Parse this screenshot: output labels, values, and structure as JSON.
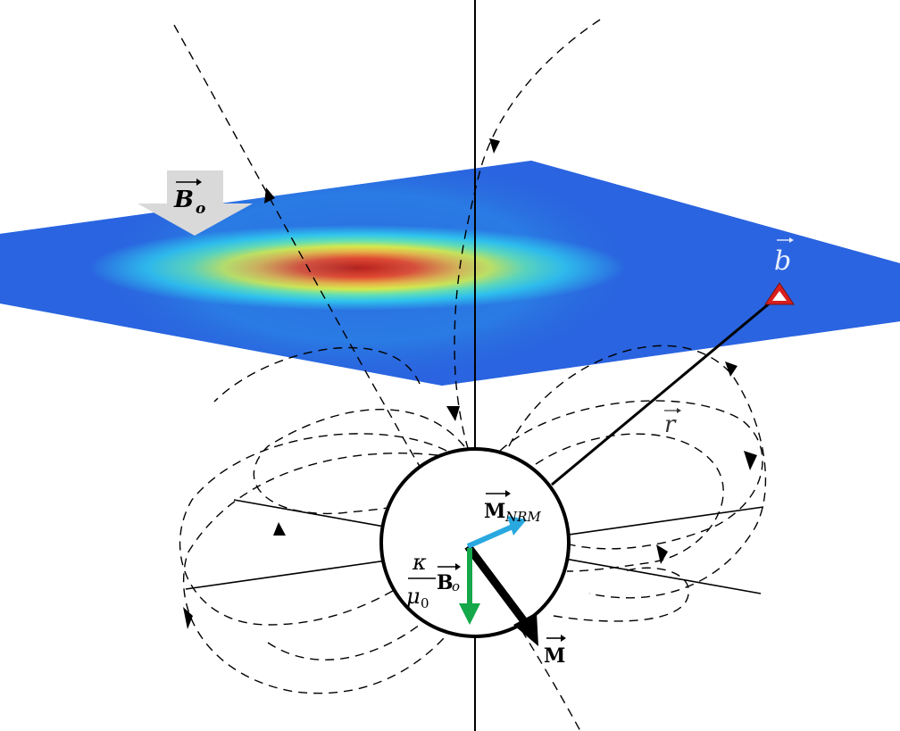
{
  "figure": {
    "labels": {
      "inducing_field": "B",
      "inducing_field_sub": "o",
      "observation_point": "b",
      "distance_vector": "r",
      "nrm_magnetization": "M",
      "nrm_sub": "NRM",
      "total_magnetization": "M",
      "susceptibility": "κ",
      "permeability": "μ",
      "permeability_sub": "0",
      "induced_field": "B",
      "induced_field_sub": "o"
    },
    "colors": {
      "nrm_arrow": "#29a8e0",
      "induced_arrow": "#14a84a",
      "total_arrow": "#000000",
      "field_arrow": "#d9d9d9",
      "observation_marker": "#d81e1e",
      "anomaly_peak": "#b22222",
      "background_plane": "#2a64e0"
    }
  }
}
